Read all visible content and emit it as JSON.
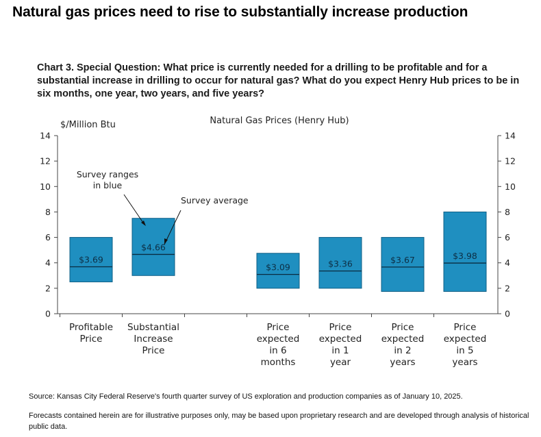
{
  "headline": "Natural gas prices need to rise to substantially increase production",
  "chart_caption": "Chart 3. Special Question: What price is currently needed for a drilling to be profitable and for a substantial increase in drilling to occur for natural gas? What do you expect Henry Hub prices to be in six months, one year, two years, and five years?",
  "footnotes": {
    "source": "Source: Kansas City Federal Reserve's fourth quarter survey of US exploration and production companies as of January 10, 2025.",
    "disclaimer": "Forecasts contained herein are for illustrative purposes only, may be based upon proprietary research and are developed through analysis of historical public data."
  },
  "colors": {
    "bar": "#1f8fc0",
    "bar_stroke": "#0f5f86",
    "axis": "#444444",
    "text": "#222222"
  },
  "chart_data": {
    "type": "bar",
    "subtype": "floating-range-with-average",
    "title": "Natural Gas Prices (Henry Hub)",
    "ylabel": "$/Million Btu",
    "ylim": [
      0,
      14
    ],
    "yticks": [
      0,
      2,
      4,
      6,
      8,
      10,
      12,
      14
    ],
    "right_axis": true,
    "grid": false,
    "categories": [
      [
        "Profitable",
        "Price"
      ],
      [
        "Substantial",
        "Increase",
        "Price"
      ],
      [
        "Price",
        "expected",
        "in 6",
        "months"
      ],
      [
        "Price",
        "expected",
        "in 1",
        "year"
      ],
      [
        "Price",
        "expected",
        "in 2",
        "years"
      ],
      [
        "Price",
        "expected",
        "in 5",
        "years"
      ]
    ],
    "slots": [
      0,
      1,
      3,
      4,
      5,
      6
    ],
    "ranges": [
      {
        "low": 2.5,
        "high": 6.0,
        "average": 3.69,
        "label": "$3.69"
      },
      {
        "low": 3.0,
        "high": 7.5,
        "average": 4.66,
        "label": "$4.66"
      },
      {
        "low": 2.0,
        "high": 4.75,
        "average": 3.09,
        "label": "$3.09"
      },
      {
        "low": 2.0,
        "high": 6.0,
        "average": 3.36,
        "label": "$3.36"
      },
      {
        "low": 1.75,
        "high": 6.0,
        "average": 3.67,
        "label": "$3.67"
      },
      {
        "low": 1.75,
        "high": 8.0,
        "average": 3.98,
        "label": "$3.98"
      }
    ],
    "annotations": [
      {
        "lines": [
          "Survey ranges",
          "in blue"
        ],
        "target_bar": 1
      },
      {
        "lines": [
          "Survey average"
        ],
        "target_bar": 1
      }
    ]
  }
}
